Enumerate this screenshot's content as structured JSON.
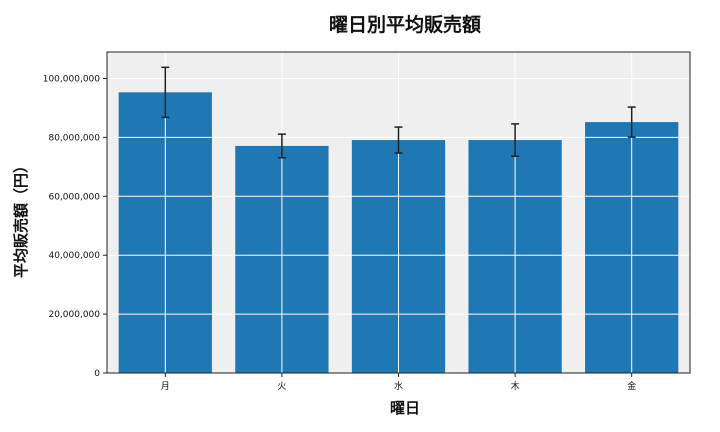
{
  "chart_data": {
    "type": "bar",
    "title": "曜日別平均販売額",
    "xlabel": "曜日",
    "ylabel": "平均販売額（円）",
    "categories": [
      "月",
      "火",
      "水",
      "木",
      "金"
    ],
    "values": [
      95300000,
      77100000,
      79100000,
      79100000,
      85200000
    ],
    "errors": [
      8500000,
      4000000,
      4400000,
      5500000,
      5100000
    ],
    "ylim": [
      0,
      109000000
    ],
    "yticks": [
      0,
      20000000,
      40000000,
      60000000,
      80000000,
      100000000
    ],
    "ytick_labels": [
      "0",
      "20,000,000",
      "40,000,000",
      "60,000,000",
      "80,000,000",
      "100,000,000"
    ],
    "grid": true,
    "colors": {
      "bar": "#1f77b4",
      "background": "#efefef",
      "grid": "#ffffff",
      "error": "#222222"
    }
  }
}
